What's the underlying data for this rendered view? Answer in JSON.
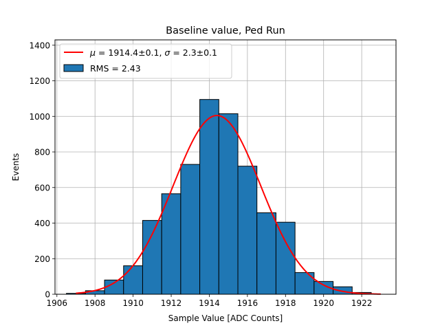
{
  "chart_data": {
    "type": "bar",
    "title": "Baseline value, Ped Run",
    "xlabel": "Sample Value [ADC Counts]",
    "ylabel": "Events",
    "xlim": [
      1905.9,
      1923.8
    ],
    "ylim": [
      0,
      1430
    ],
    "xticks": [
      1906,
      1908,
      1910,
      1912,
      1914,
      1916,
      1918,
      1920,
      1922
    ],
    "yticks": [
      0,
      200,
      400,
      600,
      800,
      1000,
      1200,
      1400
    ],
    "grid": true,
    "legend_position": "top-left",
    "histogram": {
      "bin_edges": [
        1906.5,
        1907.5,
        1908.5,
        1909.5,
        1910.5,
        1911.5,
        1912.5,
        1913.5,
        1914.5,
        1915.5,
        1916.5,
        1917.5,
        1918.5,
        1919.5,
        1920.5,
        1921.5,
        1922.5
      ],
      "counts": [
        5,
        20,
        80,
        160,
        415,
        565,
        730,
        1095,
        1015,
        720,
        458,
        405,
        122,
        72,
        42,
        10
      ],
      "color": "#1f77b4",
      "edgecolor": "#000000",
      "label": "RMS = 2.43"
    },
    "fit": {
      "type": "gaussian",
      "mu": 1914.4,
      "sigma": 2.3,
      "amplitude": 1005,
      "x_range": [
        1907.0,
        1923.0
      ],
      "color": "#ff0000",
      "label_parts": [
        "μ",
        " = 1914.4±0.1, ",
        "σ",
        " = 2.3±0.1"
      ]
    }
  }
}
